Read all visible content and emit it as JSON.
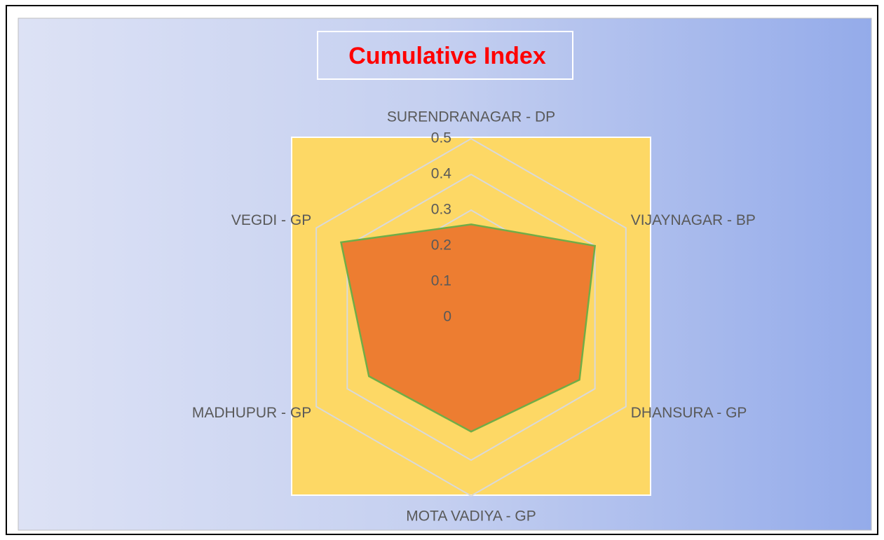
{
  "chart_data": {
    "type": "radar",
    "title": "Cumulative Index",
    "categories": [
      "SURENDRANAGAR - DP",
      "VIJAYNAGAR - BP",
      "DHANSURA - GP",
      "MOTA VADIYA - GP",
      "MADHUPUR - GP",
      "VEGDI - GP"
    ],
    "series": [
      {
        "name": "Cumulative Index",
        "color": "#ED7D31",
        "line_color": "#70AD47",
        "values": [
          0.26,
          0.4,
          0.35,
          0.32,
          0.33,
          0.42
        ]
      }
    ],
    "ylim": [
      0,
      0.5
    ],
    "yticks": [
      0,
      0.1,
      0.2,
      0.3,
      0.4,
      0.5
    ],
    "grid": true
  }
}
